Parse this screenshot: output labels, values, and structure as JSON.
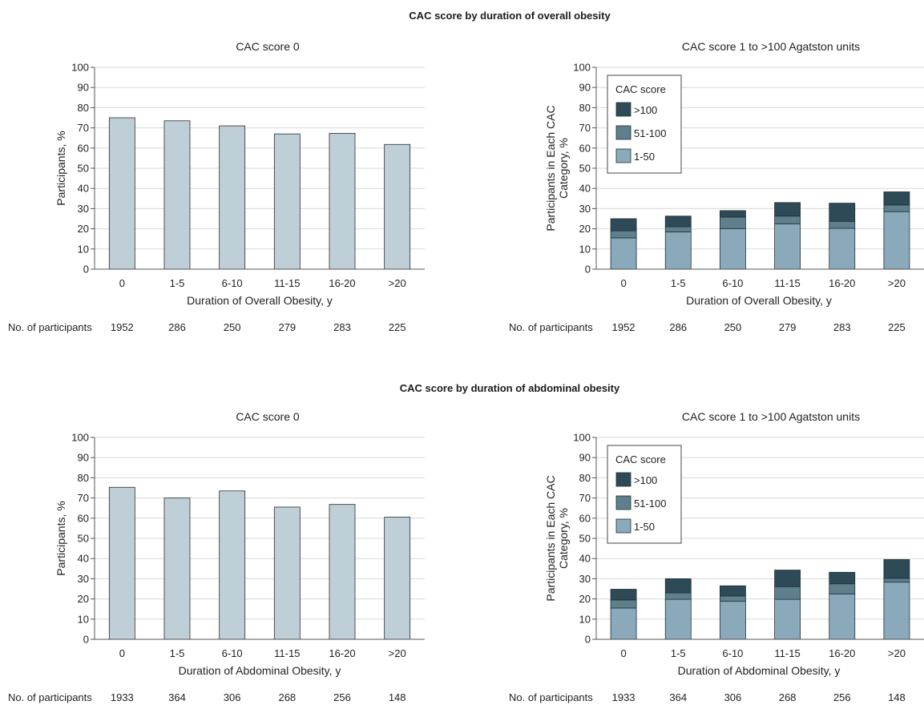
{
  "sections": [
    {
      "title": "CAC score by duration of overall obesity",
      "n_label": "No. of participants",
      "n_values": [
        "1952",
        "286",
        "250",
        "279",
        "283",
        "225"
      ]
    },
    {
      "title": "CAC score by duration of abdominal obesity",
      "n_label": "No. of participants",
      "n_values": [
        "1933",
        "364",
        "306",
        "268",
        "256",
        "148"
      ]
    }
  ],
  "colors": {
    "zero_bar": "#bfcfd8",
    "seg_1_50": "#8aaabb",
    "seg_51_100": "#5e7f8c",
    "seg_gt100": "#2e4a57",
    "gridline": "#d9d9d9",
    "axis": "#555555"
  },
  "chart_data": [
    {
      "type": "bar",
      "title": "CAC score 0",
      "categories": [
        "0",
        "1-5",
        "6-10",
        "11-15",
        "16-20",
        ">20"
      ],
      "values": [
        75,
        73.5,
        71,
        67,
        67.3,
        61.8
      ],
      "xlabel": "Duration of Overall Obesity, y",
      "ylabel": "Participants, %",
      "ylim": [
        0,
        100
      ],
      "yticks": [
        "0",
        "10",
        "20",
        "30",
        "40",
        "50",
        "60",
        "70",
        "80",
        "90",
        "100"
      ],
      "grid": true
    },
    {
      "type": "bar",
      "stacked": true,
      "title": "CAC score 1 to >100 Agatston units",
      "categories": [
        "0",
        "1-5",
        "6-10",
        "11-15",
        "16-20",
        ">20"
      ],
      "series": [
        {
          "name": "1-50",
          "values": [
            15.5,
            18.5,
            20,
            22.5,
            20.2,
            28.5
          ]
        },
        {
          "name": "51-100",
          "values": [
            3.5,
            2.5,
            5.8,
            3.8,
            3.5,
            3.3
          ]
        },
        {
          "name": ">100",
          "values": [
            6,
            5.3,
            3.2,
            6.7,
            9,
            6.5
          ]
        }
      ],
      "xlabel": "Duration of Overall Obesity, y",
      "ylabel": "Participants in Each CAC Category, %",
      "ylabel_lines": [
        "Participants in Each CAC",
        "Category, %"
      ],
      "ylim": [
        0,
        100
      ],
      "yticks": [
        "0",
        "10",
        "20",
        "30",
        "40",
        "50",
        "60",
        "70",
        "80",
        "90",
        "100"
      ],
      "grid": true,
      "legend": {
        "title": "CAC score",
        "placement": "top-left",
        "entries": [
          ">100",
          "51-100",
          "1-50"
        ]
      }
    },
    {
      "type": "bar",
      "title": "CAC score 0",
      "categories": [
        "0",
        "1-5",
        "6-10",
        "11-15",
        "16-20",
        ">20"
      ],
      "values": [
        75.3,
        70,
        73.5,
        65.5,
        66.8,
        60.5
      ],
      "xlabel": "Duration of Abdominal Obesity, y",
      "ylabel": "Participants, %",
      "ylim": [
        0,
        100
      ],
      "yticks": [
        "0",
        "10",
        "20",
        "30",
        "40",
        "50",
        "60",
        "70",
        "80",
        "90",
        "100"
      ],
      "grid": true
    },
    {
      "type": "bar",
      "stacked": true,
      "title": "CAC score 1 to >100 Agatston units",
      "categories": [
        "0",
        "1-5",
        "6-10",
        "11-15",
        "16-20",
        ">20"
      ],
      "series": [
        {
          "name": "1-50",
          "values": [
            15.5,
            19.8,
            18.8,
            19.8,
            22.5,
            28.3
          ]
        },
        {
          "name": "51-100",
          "values": [
            4,
            3.2,
            2.7,
            6.3,
            5.0,
            1.9
          ]
        },
        {
          "name": ">100",
          "values": [
            5.3,
            7,
            5,
            8.2,
            5.7,
            9.3
          ]
        }
      ],
      "xlabel": "Duration of Abdominal Obesity, y",
      "ylabel": "Participants in Each CAC Category, %",
      "ylabel_lines": [
        "Participants in Each CAC",
        "Category, %"
      ],
      "ylim": [
        0,
        100
      ],
      "yticks": [
        "0",
        "10",
        "20",
        "30",
        "40",
        "50",
        "60",
        "70",
        "80",
        "90",
        "100"
      ],
      "grid": true,
      "legend": {
        "title": "CAC score",
        "placement": "top-left",
        "entries": [
          ">100",
          "51-100",
          "1-50"
        ]
      }
    }
  ]
}
